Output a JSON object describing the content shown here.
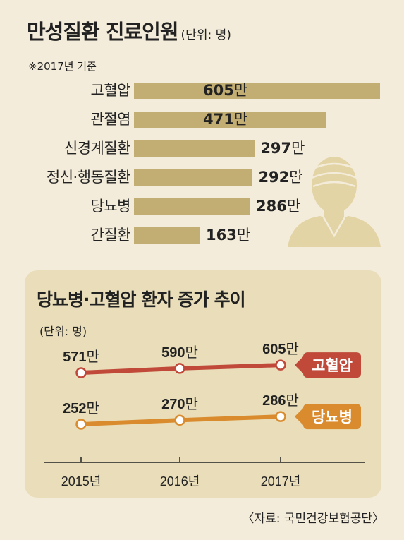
{
  "title": "만성질환 진료인원",
  "title_unit": "(단위: 명)",
  "note": "※2017년 기준",
  "panel_title": "당뇨병·고혈압 환자 증가 추이",
  "panel_unit": "(단위: 명)",
  "source": "〈자료: 국민건강보험공단〉",
  "colors": {
    "bar": "#c2ad72",
    "hypertension": "#c0493a",
    "diabetes": "#d98b2e",
    "panel": "#e9deb9"
  },
  "chart_data": [
    {
      "type": "bar",
      "orientation": "horizontal",
      "title": "만성질환 진료인원",
      "unit": "명",
      "categories": [
        "고혈압",
        "관절염",
        "신경계질환",
        "정신·행동질환",
        "당뇨병",
        "간질환"
      ],
      "values": [
        605,
        471,
        297,
        292,
        286,
        163
      ],
      "value_labels": [
        "605",
        "471",
        "297",
        "292",
        "286",
        "163"
      ],
      "value_suffix": "만"
    },
    {
      "type": "line",
      "title": "당뇨병·고혈압 환자 증가 추이",
      "unit": "명",
      "x": [
        "2015년",
        "2016년",
        "2017년"
      ],
      "value_suffix": "만",
      "series": [
        {
          "name": "고혈압",
          "values": [
            571,
            590,
            605
          ],
          "labels": [
            "571",
            "590",
            "605"
          ]
        },
        {
          "name": "당뇨병",
          "values": [
            252,
            270,
            286
          ],
          "labels": [
            "252",
            "270",
            "286"
          ]
        }
      ]
    }
  ]
}
